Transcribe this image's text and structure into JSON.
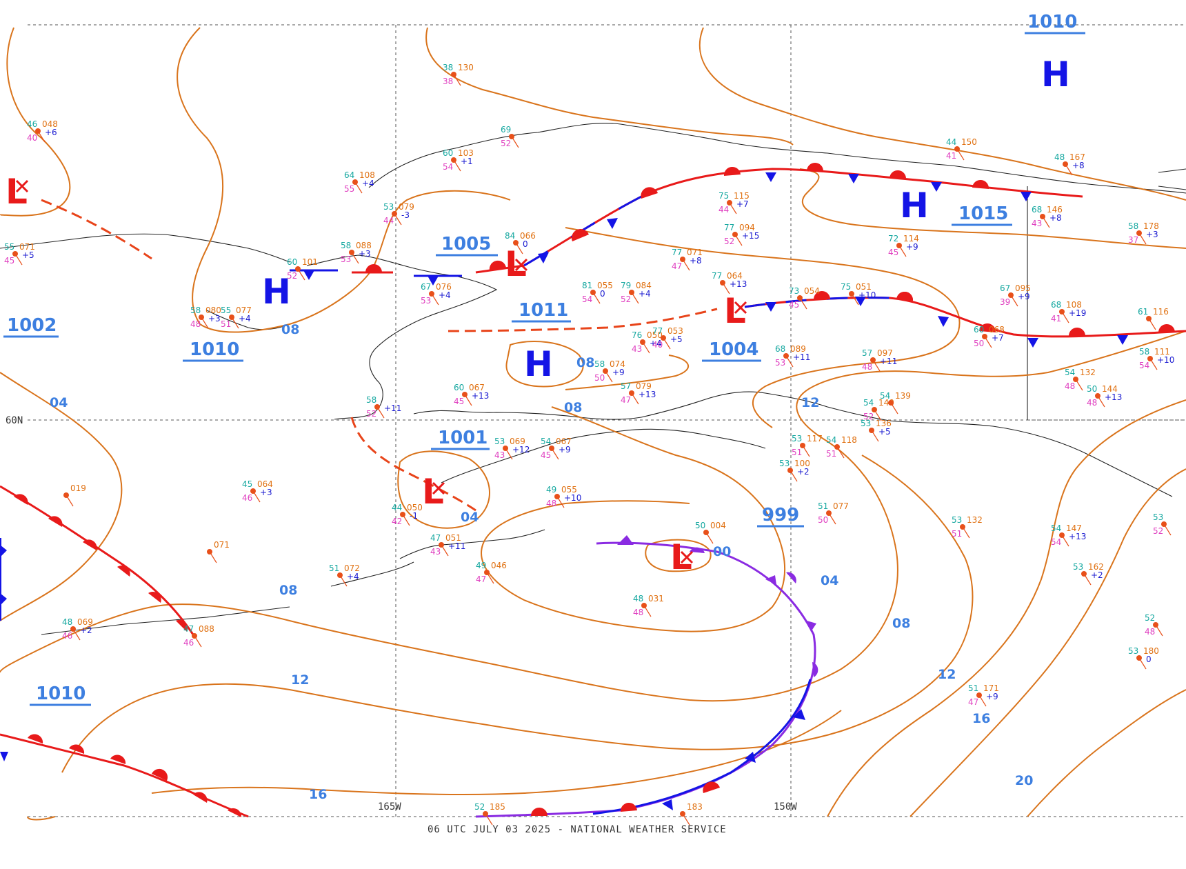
{
  "footer": "06 UTC JULY 03 2025 - NATIONAL WEATHER SERVICE",
  "grid_labels": {
    "lat_60": "60N",
    "lon_165": "165W",
    "lon_150": "150W"
  },
  "pressure_centers": [
    {
      "type": "H",
      "label": "H",
      "value": ""
    },
    {
      "type": "H",
      "label": "H",
      "value": ""
    },
    {
      "type": "H",
      "label": "H",
      "value": "1015"
    },
    {
      "type": "H",
      "label": "H",
      "value": "1010"
    },
    {
      "type": "H",
      "label": "H",
      "value": ""
    },
    {
      "type": "L",
      "label": "L",
      "value": "1002"
    },
    {
      "type": "L",
      "label": "L",
      "value": "1005"
    },
    {
      "type": "L",
      "label": "L",
      "value": "1004"
    },
    {
      "type": "L",
      "label": "L",
      "value": "1001"
    },
    {
      "type": "L",
      "label": "L",
      "value": "999"
    },
    {
      "type": "L",
      "label": "L",
      "value": "1010"
    }
  ],
  "pressure_values_extra": [
    "1011",
    "1010"
  ],
  "isobar_labels": [
    "08",
    "04",
    "08",
    "08",
    "04",
    "00",
    "04",
    "08",
    "12",
    "16",
    "20",
    "12",
    "16",
    "08",
    "12"
  ],
  "stations": [
    {
      "t": "46",
      "p": "048",
      "d": "40",
      "c": "+6"
    },
    {
      "t": "55",
      "p": "071",
      "d": "45",
      "c": "+5"
    },
    {
      "t": "38",
      "p": "130",
      "d": "38",
      "c": ""
    },
    {
      "t": "69",
      "p": "",
      "d": "52",
      "c": ""
    },
    {
      "t": "60",
      "p": "103",
      "d": "54",
      "c": "+1"
    },
    {
      "t": "64",
      "p": "108",
      "d": "55",
      "c": "+4"
    },
    {
      "t": "53",
      "p": "079",
      "d": "44",
      "c": "-3"
    },
    {
      "t": "58",
      "p": "088",
      "d": "53",
      "c": "+3"
    },
    {
      "t": "60",
      "p": "101",
      "d": "52",
      "c": ""
    },
    {
      "t": "84",
      "p": "066",
      "d": "",
      "c": "0"
    },
    {
      "t": "67",
      "p": "076",
      "d": "53",
      "c": "+4"
    },
    {
      "t": "81",
      "p": "055",
      "d": "54",
      "c": "0"
    },
    {
      "t": "79",
      "p": "084",
      "d": "52",
      "c": "+4"
    },
    {
      "t": "77",
      "p": "071",
      "d": "47",
      "c": "+8"
    },
    {
      "t": "75",
      "p": "115",
      "d": "44",
      "c": "+7"
    },
    {
      "t": "77",
      "p": "094",
      "d": "52",
      "c": "+15"
    },
    {
      "t": "77",
      "p": "064",
      "d": "",
      "c": "+13"
    },
    {
      "t": "73",
      "p": "054",
      "d": "45",
      "c": ""
    },
    {
      "t": "75",
      "p": "051",
      "d": "",
      "c": "+10"
    },
    {
      "t": "72",
      "p": "114",
      "d": "45",
      "c": "+9"
    },
    {
      "t": "68",
      "p": "146",
      "d": "43",
      "c": "+8"
    },
    {
      "t": "67",
      "p": "095",
      "d": "39",
      "c": "+9"
    },
    {
      "t": "68",
      "p": "108",
      "d": "41",
      "c": "+19"
    },
    {
      "t": "58",
      "p": "178",
      "d": "37",
      "c": "+3"
    },
    {
      "t": "48",
      "p": "167",
      "d": "",
      "c": "+8"
    },
    {
      "t": "44",
      "p": "150",
      "d": "41",
      "c": ""
    },
    {
      "t": "76",
      "p": "050",
      "d": "43",
      "c": "+4"
    },
    {
      "t": "77",
      "p": "053",
      "d": "40",
      "c": "+5"
    },
    {
      "t": "68",
      "p": "089",
      "d": "53",
      "c": "+11"
    },
    {
      "t": "57",
      "p": "097",
      "d": "48",
      "c": "+11"
    },
    {
      "t": "58",
      "p": "074",
      "d": "50",
      "c": "+9"
    },
    {
      "t": "57",
      "p": "079",
      "d": "47",
      "c": "+13"
    },
    {
      "t": "60",
      "p": "067",
      "d": "45",
      "c": "+13"
    },
    {
      "t": "58",
      "p": "",
      "d": "52",
      "c": "+11"
    },
    {
      "t": "53",
      "p": "069",
      "d": "43",
      "c": "+12"
    },
    {
      "t": "54",
      "p": "067",
      "d": "45",
      "c": "+9"
    },
    {
      "t": "49",
      "p": "055",
      "d": "48",
      "c": "+10"
    },
    {
      "t": "44",
      "p": "050",
      "d": "42",
      "c": "-1"
    },
    {
      "t": "47",
      "p": "051",
      "d": "43",
      "c": "+11"
    },
    {
      "t": "49",
      "p": "046",
      "d": "47",
      "c": ""
    },
    {
      "t": "50",
      "p": "004",
      "d": "",
      "c": ""
    },
    {
      "t": "48",
      "p": "031",
      "d": "48",
      "c": ""
    },
    {
      "t": "51",
      "p": "077",
      "d": "50",
      "c": ""
    },
    {
      "t": "53",
      "p": "132",
      "d": "51",
      "c": ""
    },
    {
      "t": "54",
      "p": "147",
      "d": "54",
      "c": "+13"
    },
    {
      "t": "53",
      "p": "162",
      "d": "",
      "c": "+2"
    },
    {
      "t": "53",
      "p": "180",
      "d": "",
      "c": "0"
    },
    {
      "t": "51",
      "p": "171",
      "d": "47",
      "c": "+9"
    },
    {
      "t": "54",
      "p": "132",
      "d": "48",
      "c": ""
    },
    {
      "t": "50",
      "p": "144",
      "d": "48",
      "c": "+13"
    },
    {
      "t": "45",
      "p": "064",
      "d": "46",
      "c": "+3"
    },
    {
      "t": "",
      "p": "071",
      "d": "",
      "c": ""
    },
    {
      "t": "",
      "p": "019",
      "d": "",
      "c": ""
    },
    {
      "t": "51",
      "p": "072",
      "d": "",
      "c": "+4"
    },
    {
      "t": "48",
      "p": "069",
      "d": "46",
      "c": "+2"
    },
    {
      "t": "47",
      "p": "088",
      "d": "46",
      "c": ""
    },
    {
      "t": "58",
      "p": "080",
      "d": "48",
      "c": "+3"
    },
    {
      "t": "55",
      "p": "077",
      "d": "51",
      "c": "+4"
    },
    {
      "t": "53",
      "p": "117",
      "d": "51",
      "c": ""
    },
    {
      "t": "53",
      "p": "100",
      "d": "",
      "c": "+2"
    },
    {
      "t": "54",
      "p": "118",
      "d": "51",
      "c": ""
    },
    {
      "t": "54",
      "p": "140",
      "d": "52",
      "c": ""
    },
    {
      "t": "53",
      "p": "136",
      "d": "",
      "c": "+5"
    },
    {
      "t": "54",
      "p": "139",
      "d": "",
      "c": ""
    },
    {
      "t": "60",
      "p": "068",
      "d": "50",
      "c": "+7"
    },
    {
      "t": "61",
      "p": "116",
      "d": "",
      "c": ""
    },
    {
      "t": "58",
      "p": "111",
      "d": "54",
      "c": "+10"
    },
    {
      "t": "52",
      "p": "185",
      "d": "",
      "c": ""
    },
    {
      "t": "",
      "p": "183",
      "d": "",
      "c": ""
    },
    {
      "t": "52",
      "p": "",
      "d": "48",
      "c": ""
    },
    {
      "t": "53",
      "p": "",
      "d": "52",
      "c": ""
    }
  ],
  "colors": {
    "isobar": "#d9741c",
    "isobar_label": "#3d7fe0",
    "high": "#1414e6",
    "low": "#e81a1a",
    "cold_front": "#1414e6",
    "warm_front": "#e81a1a",
    "occluded_front": "#8a2be2",
    "coast": "#222222"
  }
}
